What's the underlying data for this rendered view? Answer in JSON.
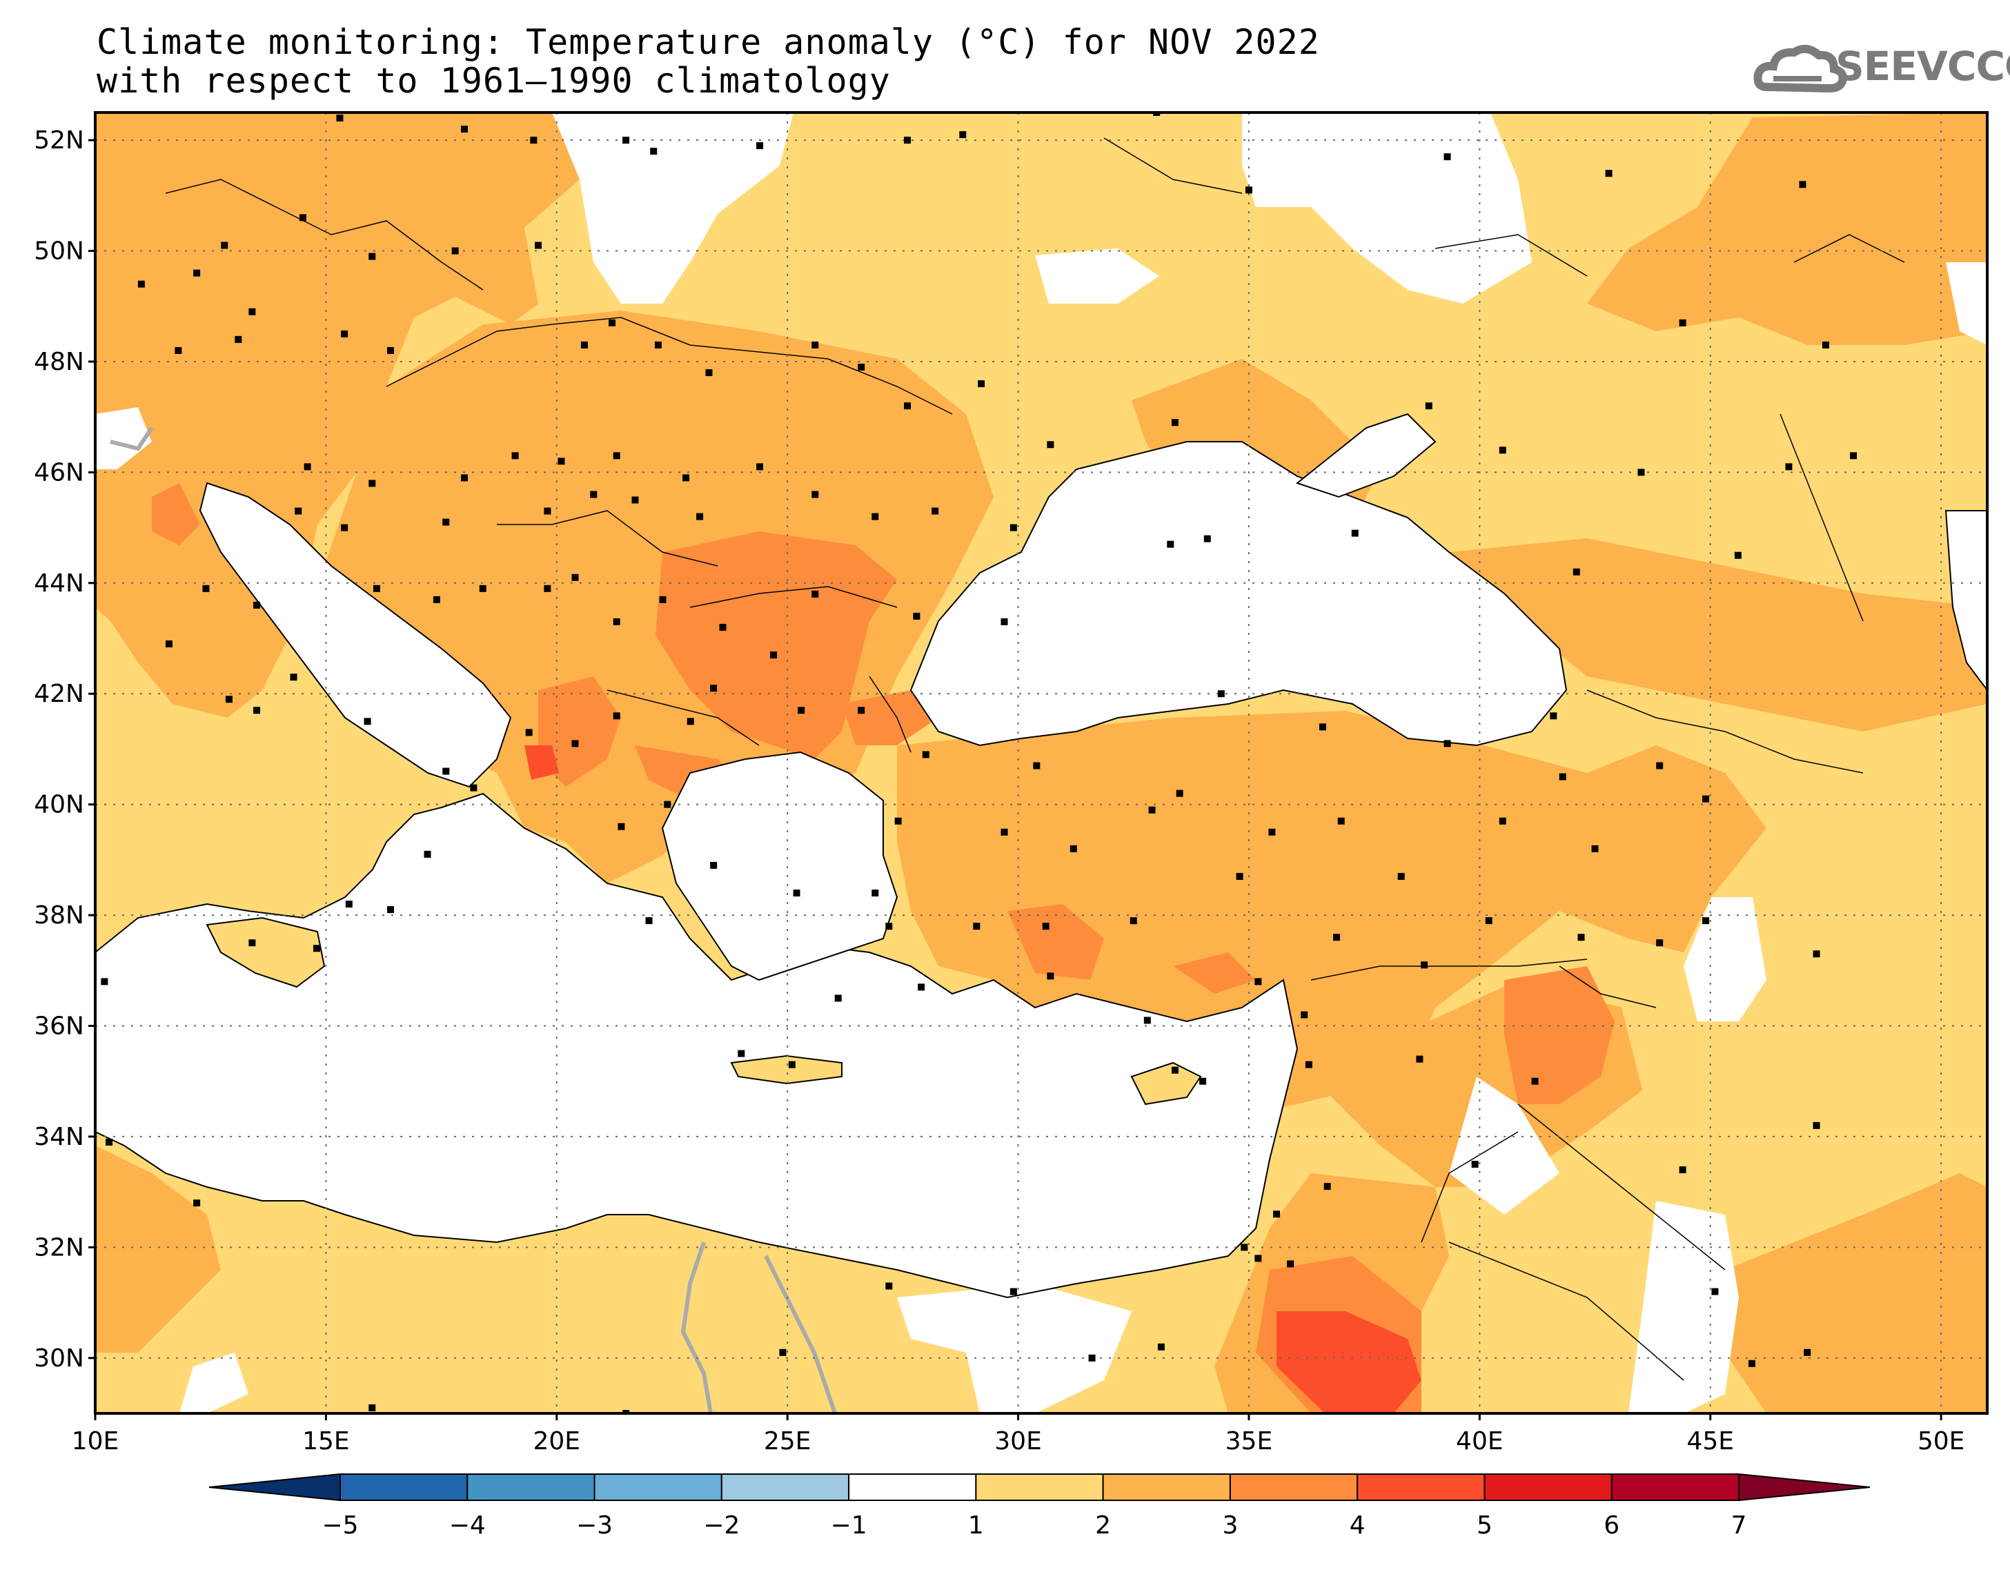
{
  "title": {
    "line1": "Climate monitoring: Temperature anomaly (°C) for NOV 2022",
    "line2": "with respect to 1961–1990 climatology"
  },
  "logo": {
    "text": "SEEVCCC",
    "icon": "cloud-icon"
  },
  "map": {
    "lat_labels": [
      "52N",
      "50N",
      "48N",
      "46N",
      "44N",
      "42N",
      "40N",
      "38N",
      "36N",
      "34N",
      "32N",
      "30N"
    ],
    "lon_labels": [
      "10E",
      "15E",
      "20E",
      "25E",
      "30E",
      "35E",
      "40E",
      "45E",
      "50E"
    ],
    "lon_range": [
      10,
      51
    ],
    "lat_range": [
      29,
      52.5
    ],
    "gridlines": "dotted"
  },
  "colorbar": {
    "ticks": [
      "−5",
      "−4",
      "−3",
      "−2",
      "−1",
      "1",
      "2",
      "3",
      "4",
      "5",
      "6",
      "7"
    ],
    "colors": [
      "#08306b",
      "#2166ac",
      "#4393c3",
      "#6baed6",
      "#9ecae1",
      "#ffffff",
      "#fed976",
      "#feb24c",
      "#fd8d3c",
      "#fc4e2a",
      "#e31a1c",
      "#b10026",
      "#800026"
    ]
  }
}
